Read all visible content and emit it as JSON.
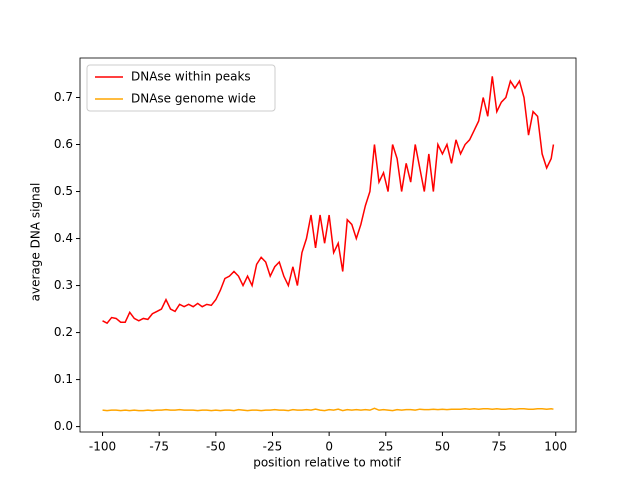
{
  "chart_data": {
    "type": "line",
    "xlabel": "position relative to motif",
    "ylabel": "average DNA signal",
    "x": [
      -100,
      -98,
      -96,
      -94,
      -92,
      -90,
      -88,
      -86,
      -84,
      -82,
      -80,
      -78,
      -76,
      -74,
      -72,
      -70,
      -68,
      -66,
      -64,
      -62,
      -60,
      -58,
      -56,
      -54,
      -52,
      -50,
      -48,
      -46,
      -44,
      -42,
      -40,
      -38,
      -36,
      -34,
      -32,
      -30,
      -28,
      -26,
      -24,
      -22,
      -20,
      -18,
      -16,
      -14,
      -12,
      -10,
      -8,
      -6,
      -4,
      -2,
      0,
      2,
      4,
      6,
      8,
      10,
      12,
      14,
      16,
      18,
      20,
      22,
      24,
      26,
      28,
      30,
      32,
      34,
      36,
      38,
      40,
      42,
      44,
      46,
      48,
      50,
      52,
      54,
      56,
      58,
      60,
      62,
      64,
      66,
      68,
      70,
      72,
      74,
      76,
      78,
      80,
      82,
      84,
      86,
      88,
      90,
      92,
      94,
      96,
      98,
      99
    ],
    "series": [
      {
        "name": "DNAse within peaks",
        "color": "#ff0000",
        "values": [
          0.225,
          0.22,
          0.232,
          0.23,
          0.222,
          0.222,
          0.243,
          0.23,
          0.225,
          0.23,
          0.228,
          0.24,
          0.245,
          0.25,
          0.27,
          0.25,
          0.245,
          0.26,
          0.255,
          0.26,
          0.255,
          0.262,
          0.255,
          0.26,
          0.258,
          0.27,
          0.29,
          0.315,
          0.32,
          0.33,
          0.32,
          0.3,
          0.32,
          0.3,
          0.345,
          0.36,
          0.35,
          0.32,
          0.34,
          0.35,
          0.32,
          0.3,
          0.34,
          0.3,
          0.37,
          0.4,
          0.45,
          0.38,
          0.45,
          0.39,
          0.45,
          0.37,
          0.39,
          0.33,
          0.44,
          0.43,
          0.4,
          0.43,
          0.47,
          0.5,
          0.6,
          0.52,
          0.54,
          0.5,
          0.6,
          0.57,
          0.5,
          0.56,
          0.52,
          0.6,
          0.55,
          0.5,
          0.58,
          0.5,
          0.6,
          0.58,
          0.6,
          0.56,
          0.61,
          0.58,
          0.6,
          0.61,
          0.63,
          0.65,
          0.7,
          0.66,
          0.745,
          0.67,
          0.69,
          0.7,
          0.735,
          0.72,
          0.735,
          0.7,
          0.62,
          0.67,
          0.66,
          0.58,
          0.55,
          0.57,
          0.6
        ]
      },
      {
        "name": "DNAse genome wide",
        "color": "#ffa500",
        "values": [
          0.035,
          0.034,
          0.035,
          0.035,
          0.034,
          0.035,
          0.034,
          0.035,
          0.034,
          0.034,
          0.035,
          0.034,
          0.035,
          0.035,
          0.036,
          0.035,
          0.035,
          0.036,
          0.035,
          0.035,
          0.035,
          0.034,
          0.035,
          0.035,
          0.034,
          0.035,
          0.034,
          0.035,
          0.035,
          0.034,
          0.036,
          0.035,
          0.034,
          0.035,
          0.035,
          0.034,
          0.035,
          0.035,
          0.036,
          0.035,
          0.035,
          0.034,
          0.036,
          0.035,
          0.035,
          0.036,
          0.035,
          0.037,
          0.035,
          0.034,
          0.036,
          0.035,
          0.037,
          0.034,
          0.036,
          0.035,
          0.036,
          0.035,
          0.036,
          0.035,
          0.039,
          0.035,
          0.036,
          0.035,
          0.034,
          0.036,
          0.035,
          0.036,
          0.036,
          0.035,
          0.037,
          0.036,
          0.036,
          0.037,
          0.036,
          0.037,
          0.036,
          0.037,
          0.037,
          0.037,
          0.038,
          0.037,
          0.038,
          0.037,
          0.038,
          0.038,
          0.037,
          0.038,
          0.037,
          0.037,
          0.038,
          0.037,
          0.038,
          0.038,
          0.037,
          0.037,
          0.038,
          0.038,
          0.037,
          0.038,
          0.037
        ]
      }
    ],
    "xlim": [
      -109.95,
      108.95
    ],
    "ylim": [
      -0.0115,
      0.784
    ],
    "xticks": [
      -100,
      -75,
      -50,
      -25,
      0,
      25,
      50,
      75,
      100
    ],
    "yticks": [
      {
        "value": 0,
        "label": "0.0"
      },
      0.1,
      0.2,
      0.3,
      0.4,
      0.5,
      0.6,
      0.7
    ],
    "legend": "upper left"
  }
}
